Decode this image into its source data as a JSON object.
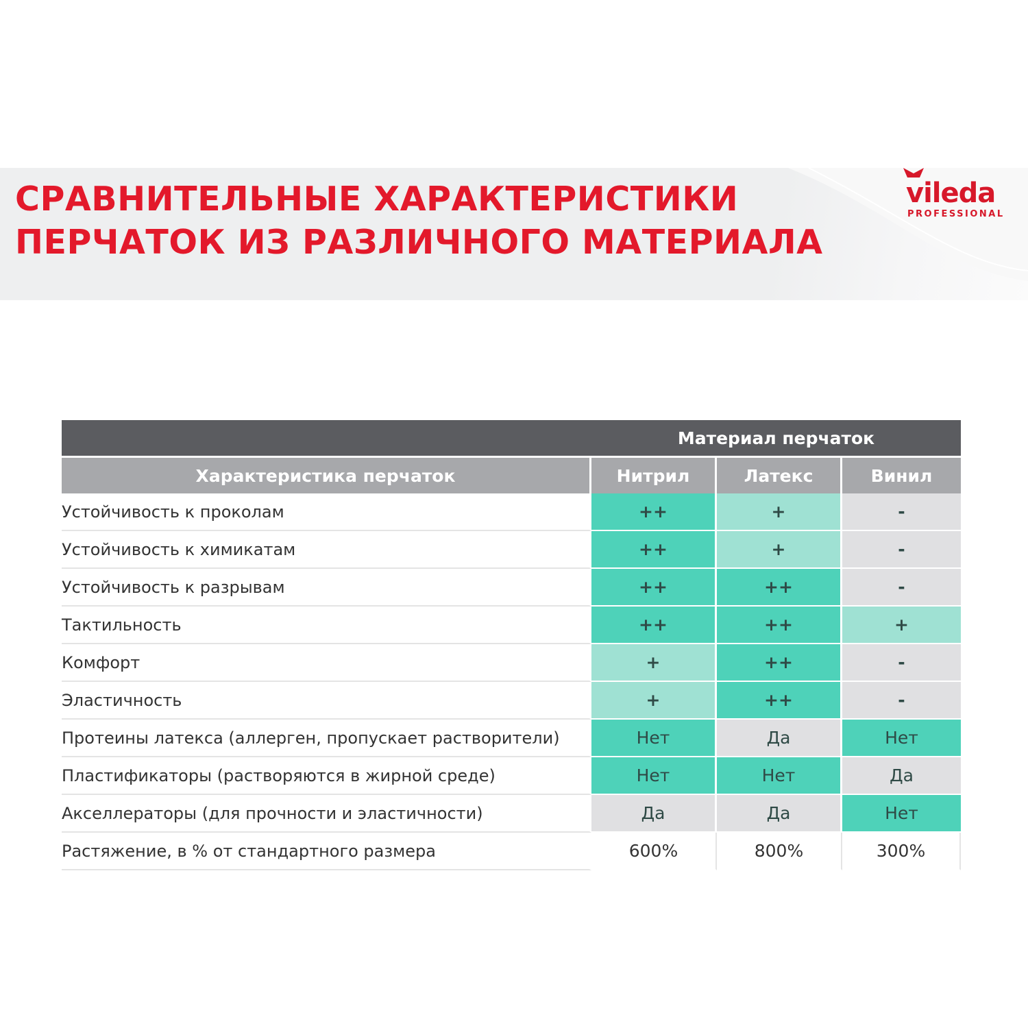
{
  "header": {
    "title_line1": "СРАВНИТЕЛЬНЫЕ ХАРАКТЕРИСТИКИ",
    "title_line2": "ПЕРЧАТОК ИЗ РАЗЛИЧНОГО МАТЕРИАЛА",
    "logo": {
      "word": "vileda",
      "sub": "PROFESSIONAL"
    },
    "colors": {
      "title": "#e3192b",
      "band": "#eeeff0"
    }
  },
  "table": {
    "group_header": "Материал перчаток",
    "columns": [
      "Характеристика перчаток",
      "Нитрил",
      "Латекс",
      "Винил"
    ],
    "colors": {
      "strong": "#4ed2b9",
      "light": "#9fe1d3",
      "none": "#e0e0e2",
      "header_dark": "#5b5c60",
      "header_gray": "#a7a8ab"
    },
    "rows": [
      {
        "label": "Устойчивость к проколам",
        "values": [
          "++",
          "+",
          "-"
        ],
        "levels": [
          "s",
          "l",
          "g"
        ]
      },
      {
        "label": "Устойчивость к химикатам",
        "values": [
          "++",
          "+",
          "-"
        ],
        "levels": [
          "s",
          "l",
          "g"
        ]
      },
      {
        "label": "Устойчивость к разрывам",
        "values": [
          "++",
          "++",
          "-"
        ],
        "levels": [
          "s",
          "s",
          "g"
        ]
      },
      {
        "label": "Тактильность",
        "values": [
          "++",
          "++",
          "+"
        ],
        "levels": [
          "s",
          "s",
          "l"
        ]
      },
      {
        "label": "Комфорт",
        "values": [
          "+",
          "++",
          "-"
        ],
        "levels": [
          "l",
          "s",
          "g"
        ]
      },
      {
        "label": "Эластичность",
        "values": [
          "+",
          "++",
          "-"
        ],
        "levels": [
          "l",
          "s",
          "g"
        ]
      },
      {
        "label": "Протеины латекса (аллерген, пропускает растворители)",
        "values": [
          "Нет",
          "Да",
          "Нет"
        ],
        "levels": [
          "s",
          "g",
          "s"
        ]
      },
      {
        "label": "Пластификаторы (растворяются в жирной среде)",
        "values": [
          "Нет",
          "Нет",
          "Да"
        ],
        "levels": [
          "s",
          "s",
          "g"
        ]
      },
      {
        "label": "Акселлераторы (для прочности и эластичности)",
        "values": [
          "Да",
          "Да",
          "Нет"
        ],
        "levels": [
          "g",
          "g",
          "s"
        ]
      },
      {
        "label": "Растяжение, в % от стандартного размера",
        "values": [
          "600%",
          "800%",
          "300%"
        ],
        "levels": [
          "n",
          "n",
          "n"
        ]
      }
    ]
  }
}
